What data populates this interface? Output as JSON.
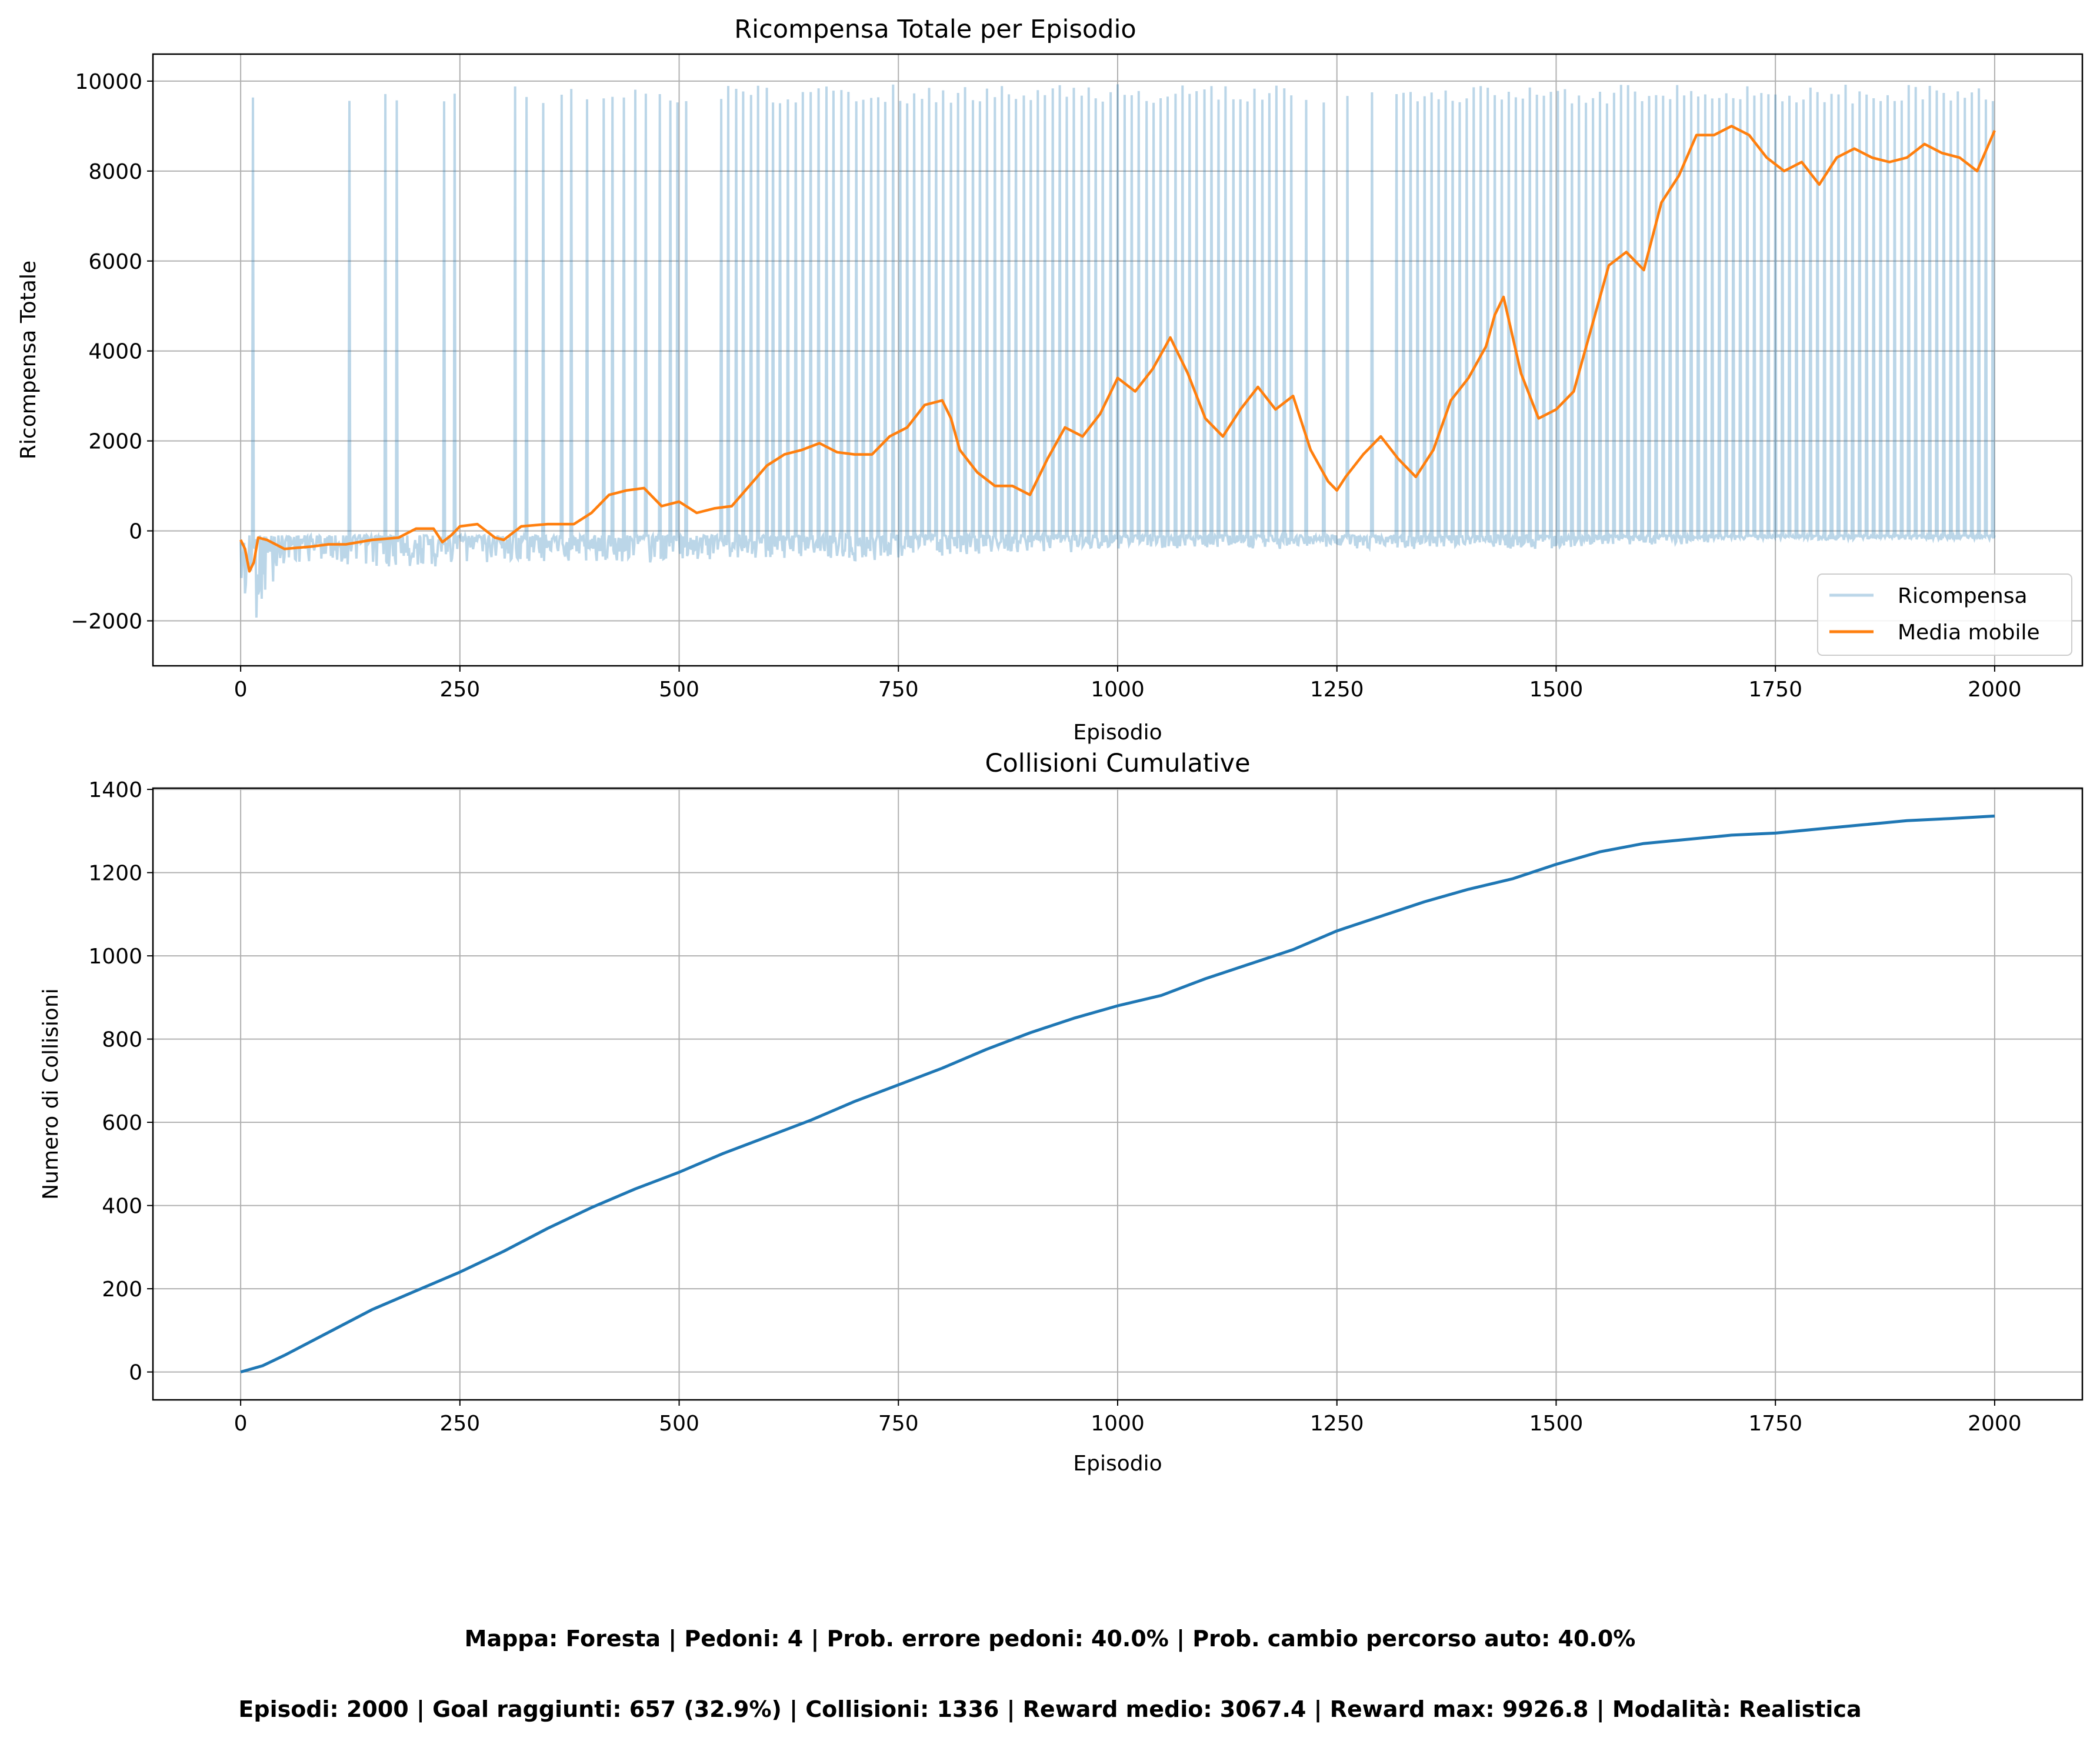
{
  "chart_data": [
    {
      "type": "line",
      "title": "Ricompensa Totale per Episodio",
      "xlabel": "Episodio",
      "ylabel": "Ricompensa Totale",
      "xlim": [
        -100,
        2100
      ],
      "ylim": [
        -3000,
        10600
      ],
      "xticks": [
        0,
        250,
        500,
        750,
        1000,
        1250,
        1500,
        1750,
        2000
      ],
      "xtick_labels": [
        "0",
        "250",
        "500",
        "750",
        "1000",
        "1250",
        "1500",
        "1750",
        "2000"
      ],
      "yticks": [
        -2000,
        0,
        2000,
        4000,
        6000,
        8000,
        10000
      ],
      "ytick_labels": [
        "−2000",
        "0",
        "2000",
        "4000",
        "6000",
        "8000",
        "10000"
      ],
      "grid": true,
      "legend_position": "lower-right",
      "series": [
        {
          "name": "Ricompensa",
          "color": "#1f77b4",
          "opacity": 0.3,
          "style": "noisy-envelope",
          "x": [
            0,
            10,
            50,
            100,
            150,
            200,
            250,
            300,
            350,
            400,
            450,
            500,
            550,
            600,
            650,
            700,
            750,
            800,
            850,
            900,
            950,
            1000,
            1050,
            1100,
            1150,
            1200,
            1250,
            1300,
            1350,
            1400,
            1450,
            1500,
            1550,
            1600,
            1650,
            1700,
            1750,
            1800,
            1850,
            1900,
            1950,
            2000
          ],
          "baseline_low": [
            -1800,
            -2300,
            -700,
            -700,
            -800,
            -900,
            -700,
            -700,
            -700,
            -700,
            -700,
            -700,
            -600,
            -600,
            -600,
            -700,
            -600,
            -600,
            -500,
            -500,
            -500,
            -400,
            -400,
            -400,
            -400,
            -400,
            -400,
            -400,
            -400,
            -400,
            -400,
            -400,
            -300,
            -300,
            -300,
            -200,
            -200,
            -200,
            -200,
            -200,
            -200,
            -200
          ],
          "baseline_high": [
            -200,
            -100,
            -100,
            -100,
            -100,
            -100,
            -100,
            -100,
            -100,
            -100,
            -100,
            -100,
            -100,
            -100,
            -100,
            -100,
            -100,
            -100,
            -100,
            -100,
            -100,
            -100,
            -100,
            -100,
            -100,
            -100,
            -100,
            -100,
            -100,
            -100,
            -100,
            -100,
            -100,
            -100,
            -100,
            -100,
            -100,
            -100,
            -100,
            -100,
            -100,
            -100
          ],
          "goal_value_range": [
            9500,
            9930
          ],
          "goal_spike_episodes": [
            14,
            124,
            165,
            178,
            232,
            244,
            313,
            326,
            345,
            366,
            377,
            395,
            414,
            424,
            437,
            450,
            462,
            478,
            490,
            498,
            508,
            548,
            556,
            565,
            573,
            582,
            590,
            600,
            607,
            615,
            624,
            633,
            641,
            650,
            659,
            668,
            676,
            685,
            693,
            702,
            710,
            719,
            727,
            735,
            744,
            752,
            760,
            768,
            777,
            785,
            793,
            801,
            810,
            818,
            826,
            835,
            843,
            851,
            860,
            868,
            876,
            884,
            893,
            901,
            909,
            917,
            926,
            934,
            942,
            950,
            959,
            967,
            975,
            983,
            992,
            1000,
            1008,
            1016,
            1024,
            1033,
            1041,
            1049,
            1057,
            1066,
            1074,
            1082,
            1090,
            1099,
            1107,
            1115,
            1123,
            1132,
            1140,
            1148,
            1156,
            1165,
            1173,
            1181,
            1190,
            1198,
            1215,
            1235,
            1262,
            1290,
            1318,
            1326,
            1334,
            1342,
            1350,
            1358,
            1366,
            1374,
            1382,
            1390,
            1398,
            1406,
            1414,
            1422,
            1430,
            1438,
            1446,
            1454,
            1462,
            1470,
            1478,
            1486,
            1494,
            1502,
            1510,
            1518,
            1526,
            1534,
            1542,
            1550,
            1558,
            1566,
            1574,
            1582,
            1590,
            1598,
            1606,
            1614,
            1622,
            1630,
            1638,
            1646,
            1654,
            1662,
            1670,
            1678,
            1686,
            1694,
            1702,
            1710,
            1718,
            1726,
            1734,
            1742,
            1750,
            1758,
            1766,
            1774,
            1782,
            1790,
            1798,
            1806,
            1814,
            1822,
            1830,
            1838,
            1846,
            1854,
            1862,
            1870,
            1878,
            1886,
            1894,
            1902,
            1910,
            1918,
            1926,
            1934,
            1942,
            1950,
            1958,
            1966,
            1974,
            1982,
            1990,
            1998
          ]
        },
        {
          "name": "Media mobile",
          "color": "#ff7f0e",
          "x": [
            0,
            5,
            10,
            15,
            20,
            30,
            50,
            80,
            100,
            120,
            150,
            180,
            200,
            220,
            230,
            240,
            250,
            270,
            290,
            300,
            320,
            350,
            380,
            400,
            420,
            440,
            460,
            480,
            500,
            520,
            540,
            560,
            580,
            600,
            620,
            640,
            660,
            680,
            700,
            720,
            740,
            760,
            780,
            800,
            810,
            820,
            840,
            860,
            880,
            900,
            920,
            940,
            960,
            980,
            1000,
            1020,
            1040,
            1060,
            1080,
            1100,
            1120,
            1140,
            1160,
            1180,
            1200,
            1220,
            1240,
            1250,
            1260,
            1280,
            1300,
            1320,
            1340,
            1360,
            1380,
            1400,
            1420,
            1430,
            1440,
            1460,
            1480,
            1500,
            1520,
            1540,
            1560,
            1580,
            1600,
            1620,
            1640,
            1660,
            1680,
            1700,
            1720,
            1740,
            1760,
            1780,
            1800,
            1820,
            1840,
            1860,
            1880,
            1900,
            1920,
            1940,
            1960,
            1980,
            2000
          ],
          "values": [
            -200,
            -400,
            -900,
            -700,
            -150,
            -200,
            -400,
            -350,
            -300,
            -300,
            -200,
            -150,
            50,
            50,
            -250,
            -100,
            100,
            150,
            -150,
            -200,
            100,
            150,
            150,
            400,
            800,
            900,
            950,
            550,
            650,
            400,
            500,
            550,
            1000,
            1450,
            1700,
            1800,
            1950,
            1750,
            1700,
            1700,
            2100,
            2300,
            2800,
            2900,
            2500,
            1800,
            1300,
            1000,
            1000,
            800,
            1600,
            2300,
            2100,
            2600,
            3400,
            3100,
            3600,
            4300,
            3500,
            2500,
            2100,
            2700,
            3200,
            2700,
            3000,
            1800,
            1100,
            900,
            1200,
            1700,
            2100,
            1600,
            1200,
            1800,
            2900,
            3400,
            4100,
            4800,
            5200,
            3500,
            2500,
            2700,
            3100,
            4500,
            5900,
            6200,
            5800,
            7300,
            7900,
            8800,
            8800,
            9000,
            8800,
            8300,
            8000,
            8200,
            7700,
            8300,
            8500,
            8300,
            8200,
            8300,
            8600,
            8400,
            8300,
            8000,
            8900
          ]
        }
      ]
    },
    {
      "type": "line",
      "title": "Collisioni Cumulative",
      "xlabel": "Episodio",
      "ylabel": "Numero di Collisioni",
      "xlim": [
        -100,
        2100
      ],
      "ylim": [
        -67,
        1403
      ],
      "xticks": [
        0,
        250,
        500,
        750,
        1000,
        1250,
        1500,
        1750,
        2000
      ],
      "xtick_labels": [
        "0",
        "250",
        "500",
        "750",
        "1000",
        "1250",
        "1500",
        "1750",
        "2000"
      ],
      "yticks": [
        0,
        200,
        400,
        600,
        800,
        1000,
        1200,
        1400
      ],
      "ytick_labels": [
        "0",
        "200",
        "400",
        "600",
        "800",
        "1000",
        "1200",
        "1400"
      ],
      "grid": true,
      "series": [
        {
          "color": "#1f77b4",
          "x": [
            0,
            25,
            50,
            100,
            150,
            200,
            250,
            300,
            350,
            400,
            450,
            500,
            550,
            600,
            650,
            700,
            750,
            800,
            850,
            900,
            950,
            1000,
            1050,
            1100,
            1150,
            1200,
            1250,
            1300,
            1350,
            1400,
            1450,
            1500,
            1550,
            1600,
            1650,
            1700,
            1750,
            1800,
            1850,
            1900,
            1950,
            2000
          ],
          "values": [
            0,
            15,
            40,
            95,
            150,
            195,
            240,
            290,
            345,
            395,
            440,
            480,
            525,
            565,
            605,
            650,
            690,
            730,
            775,
            815,
            850,
            880,
            905,
            945,
            980,
            1015,
            1060,
            1095,
            1130,
            1160,
            1185,
            1220,
            1250,
            1270,
            1280,
            1290,
            1295,
            1305,
            1315,
            1325,
            1330,
            1336
          ]
        }
      ]
    }
  ],
  "footer": {
    "line1": "Mappa: Foresta | Pedoni: 4 | Prob. errore pedoni: 40.0% | Prob. cambio percorso auto: 40.0%",
    "line2": "Episodi: 2000 | Goal raggiunti: 657 (32.9%) | Collisioni: 1336 | Reward medio: 3067.4 | Reward max: 9926.8 | Modalità: Realistica"
  }
}
